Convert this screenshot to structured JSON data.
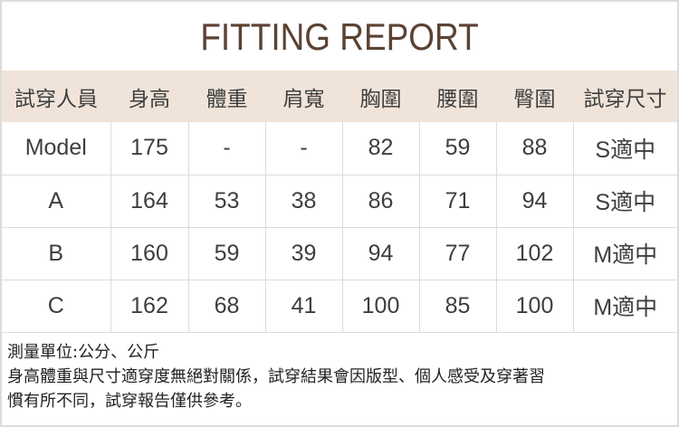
{
  "title": "FITTING REPORT",
  "headers": [
    "試穿人員",
    "身高",
    "體重",
    "肩寬",
    "胸圍",
    "腰圍",
    "臀圍",
    "試穿尺寸"
  ],
  "rows": [
    [
      "Model",
      "175",
      "-",
      "-",
      "82",
      "59",
      "88",
      "S適中"
    ],
    [
      "A",
      "164",
      "53",
      "38",
      "86",
      "71",
      "94",
      "S適中"
    ],
    [
      "B",
      "160",
      "59",
      "39",
      "94",
      "77",
      "102",
      "M適中"
    ],
    [
      "C",
      "162",
      "68",
      "41",
      "100",
      "85",
      "100",
      "M適中"
    ]
  ],
  "notes": [
    "測量單位:公分、公斤",
    "身高體重與尺寸適穿度無絕對關係，試穿結果會因版型、個人感受及穿著習",
    "慣有所不同，試穿報告僅供參考。"
  ],
  "colors": {
    "header_bg": "#f0e4da",
    "title": "#5b4232"
  }
}
